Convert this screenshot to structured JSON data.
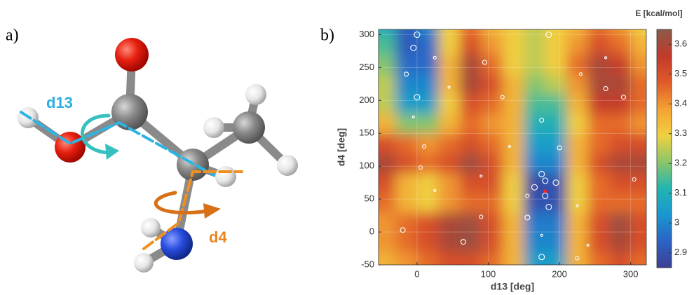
{
  "panel_a": {
    "label": "a)",
    "torsion_1": "d13",
    "torsion_2": "d4"
  },
  "chart_data": {
    "type": "contour",
    "panel_label": "b)",
    "xlabel": "d13 [deg]",
    "ylabel": "d4 [deg]",
    "colorbar_label": "E [kcal/mol]",
    "xlim": [
      -54,
      322
    ],
    "ylim": [
      -50,
      308
    ],
    "xticks": [
      0,
      100,
      200,
      300
    ],
    "yticks": [
      -50,
      0,
      50,
      100,
      150,
      200,
      250,
      300
    ],
    "clim": [
      2.85,
      3.65
    ],
    "cticks": [
      2.9,
      3,
      3.1,
      3.2,
      3.3,
      3.4,
      3.5,
      3.6
    ],
    "colormap": [
      "#3d3f94",
      "#2b63c4",
      "#1a97d0",
      "#22b5b0",
      "#8cc66a",
      "#f0d040",
      "#f3a232",
      "#e05a2a",
      "#c23a2a",
      "#8a5a4a"
    ],
    "x": [
      -45,
      -15,
      15,
      45,
      75,
      105,
      135,
      165,
      195,
      225,
      255,
      285,
      315
    ],
    "y": [
      -45,
      -15,
      15,
      45,
      75,
      105,
      135,
      165,
      195,
      225,
      255,
      285,
      315
    ],
    "z": [
      [
        3.35,
        3.4,
        3.45,
        3.5,
        3.5,
        3.45,
        3.35,
        3.05,
        3.05,
        3.35,
        3.45,
        3.5,
        3.45
      ],
      [
        3.4,
        3.45,
        3.5,
        3.6,
        3.62,
        3.5,
        3.35,
        3.0,
        3.0,
        3.35,
        3.5,
        3.6,
        3.5
      ],
      [
        3.4,
        3.45,
        3.5,
        3.6,
        3.62,
        3.5,
        3.35,
        2.98,
        2.98,
        3.35,
        3.5,
        3.62,
        3.5
      ],
      [
        3.45,
        3.35,
        3.3,
        3.4,
        3.45,
        3.45,
        3.3,
        2.9,
        2.9,
        3.3,
        3.45,
        3.45,
        3.45
      ],
      [
        3.5,
        3.35,
        3.3,
        3.4,
        3.5,
        3.5,
        3.3,
        2.88,
        2.9,
        3.3,
        3.45,
        3.5,
        3.5
      ],
      [
        3.6,
        3.5,
        3.45,
        3.5,
        3.62,
        3.5,
        3.35,
        3.0,
        3.0,
        3.35,
        3.5,
        3.6,
        3.6
      ],
      [
        3.5,
        3.45,
        3.4,
        3.45,
        3.5,
        3.45,
        3.35,
        3.05,
        3.05,
        3.35,
        3.45,
        3.5,
        3.5
      ],
      [
        3.35,
        3.2,
        3.2,
        3.35,
        3.45,
        3.4,
        3.35,
        3.1,
        3.1,
        3.3,
        3.45,
        3.45,
        3.4
      ],
      [
        3.25,
        3.05,
        3.05,
        3.3,
        3.5,
        3.45,
        3.35,
        3.15,
        3.15,
        3.35,
        3.55,
        3.55,
        3.45
      ],
      [
        3.25,
        3.0,
        3.0,
        3.35,
        3.6,
        3.5,
        3.35,
        3.2,
        3.25,
        3.4,
        3.6,
        3.6,
        3.45
      ],
      [
        3.2,
        2.95,
        2.95,
        3.35,
        3.6,
        3.45,
        3.3,
        3.25,
        3.3,
        3.45,
        3.6,
        3.55,
        3.4
      ],
      [
        3.15,
        2.92,
        2.95,
        3.3,
        3.5,
        3.4,
        3.3,
        3.25,
        3.3,
        3.4,
        3.5,
        3.45,
        3.35
      ],
      [
        3.1,
        2.92,
        3.0,
        3.3,
        3.45,
        3.35,
        3.3,
        3.25,
        3.3,
        3.35,
        3.45,
        3.4,
        3.3
      ]
    ],
    "points": {
      "color": "#ffffff",
      "x": [
        0,
        -5,
        25,
        -15,
        45,
        0,
        -5,
        95,
        120,
        265,
        265,
        290,
        230,
        185,
        175,
        200,
        10,
        130,
        5,
        90,
        25,
        305,
        175,
        180,
        195,
        165,
        180,
        185,
        155,
        225,
        -20,
        90,
        155,
        175,
        240,
        65,
        175,
        225
      ],
      "y": [
        300,
        280,
        265,
        240,
        220,
        205,
        175,
        258,
        205,
        265,
        218,
        205,
        240,
        300,
        170,
        128,
        130,
        130,
        98,
        85,
        63,
        80,
        88,
        78,
        75,
        68,
        55,
        38,
        55,
        40,
        3,
        23,
        22,
        -5,
        -20,
        -15,
        -38,
        -40
      ],
      "size": [
        4,
        4,
        2,
        3,
        1.5,
        4,
        1.5,
        3,
        2.5,
        1.5,
        3,
        3,
        2,
        4,
        3,
        3,
        2.5,
        1.5,
        2.5,
        1.5,
        1.5,
        2.5,
        4,
        4,
        4,
        4,
        4,
        4,
        2.5,
        1.5,
        3.5,
        2.5,
        3.5,
        1.5,
        1.5,
        3.5,
        4,
        2.5
      ]
    },
    "minimum": {
      "x": 180,
      "y": 62,
      "color": "#ff2020"
    }
  }
}
